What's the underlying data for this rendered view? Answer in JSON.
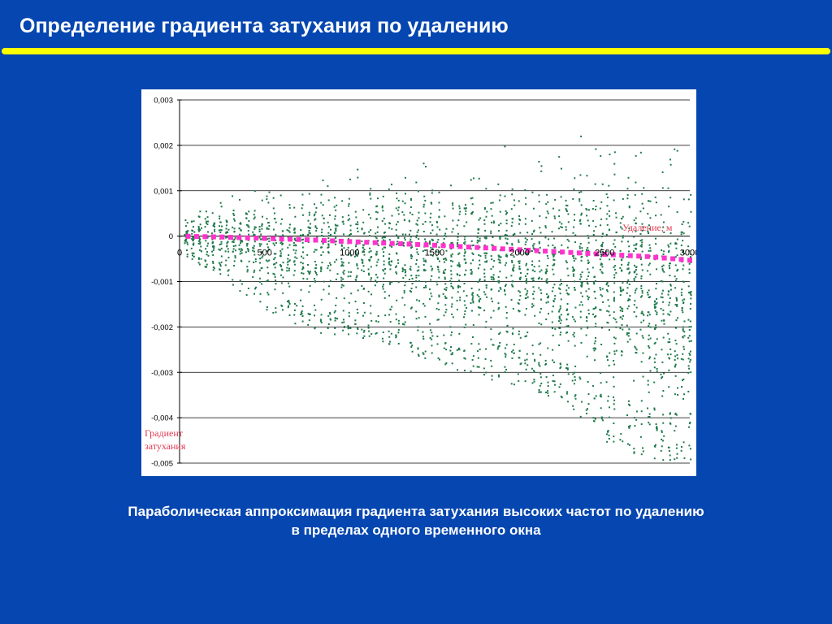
{
  "slide": {
    "title": "Определение градиента затухания по удалению",
    "caption": "Параболическая аппроксимация градиента затухания высоких частот по удалению в пределах одного временного окна"
  },
  "colors": {
    "background": "#0546b0",
    "title_rule": "#ffff00",
    "scatter_points": "#1f7a4a",
    "fit_curve": "#ff33cc",
    "axis_annotation": "#e03a52"
  },
  "chart_data": {
    "type": "scatter",
    "title": "",
    "xlabel": "Удаление, м",
    "ylabel": "Градиент затухания",
    "xlim": [
      0,
      3000
    ],
    "ylim": [
      -0.005,
      0.003
    ],
    "x_ticks": [
      0,
      500,
      1000,
      1500,
      2000,
      2500,
      3000
    ],
    "x_tick_labels": [
      "0",
      "500",
      "1000",
      "1500",
      "2000",
      "2500",
      "3000"
    ],
    "y_ticks": [
      0.003,
      0.002,
      0.001,
      0,
      -0.001,
      -0.002,
      -0.003,
      -0.004,
      -0.005
    ],
    "y_tick_labels": [
      "0,003",
      "0,002",
      "0,001",
      "0",
      "-0,001",
      "-0,002",
      "-0,003",
      "-0,004",
      "-0,005"
    ],
    "grid": true,
    "legend": "none",
    "series": [
      {
        "kind": "scatter-envelope",
        "x": [
          0,
          250,
          500,
          750,
          1000,
          1250,
          1500,
          1750,
          2000,
          2250,
          2500,
          2750,
          3000
        ],
        "y_max": [
          0.0004,
          0.0009,
          0.0013,
          0.0015,
          0.0017,
          0.0018,
          0.0019,
          0.002,
          0.0021,
          0.0022,
          0.0026,
          0.0027,
          0.0022
        ],
        "y_min": [
          -0.0004,
          -0.0009,
          -0.0016,
          -0.0021,
          -0.0022,
          -0.0024,
          -0.0028,
          -0.0031,
          -0.0033,
          -0.0037,
          -0.0045,
          -0.0049,
          -0.005
        ]
      },
      {
        "kind": "fit",
        "x": [
          0,
          250,
          500,
          750,
          1000,
          1250,
          1500,
          1750,
          2000,
          2250,
          2500,
          2750,
          3000
        ],
        "y": [
          0.0,
          -2e-05,
          -5e-05,
          -8e-05,
          -0.00012,
          -0.00016,
          -0.0002,
          -0.00025,
          -0.0003,
          -0.00035,
          -0.0004,
          -0.00045,
          -0.00053
        ]
      }
    ]
  }
}
